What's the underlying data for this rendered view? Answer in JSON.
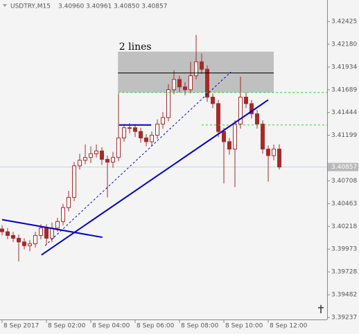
{
  "header": {
    "symbol": "USDTRY,M15",
    "quote": "3.40960 3.40961 3.40850 3.40857"
  },
  "chart_data": {
    "type": "candlestick",
    "candle_color": "#a52a2a",
    "bull_fill": "#ffffff",
    "xlim": [
      -0.375,
      58.625
    ],
    "ylim": [
      3.39215,
      3.42656
    ],
    "xticks": [
      {
        "value": 0,
        "label": "8 Sep 2017"
      },
      {
        "value": 8,
        "label": "8 Sep 02:00"
      },
      {
        "value": 16,
        "label": "8 Sep 04:00"
      },
      {
        "value": 24,
        "label": "8 Sep 06:00"
      },
      {
        "value": 32,
        "label": "8 Sep 08:00"
      },
      {
        "value": 40,
        "label": "8 Sep 10:00"
      },
      {
        "value": 48,
        "label": "8 Sep 12:00"
      }
    ],
    "yticks": [
      3.42425,
      {
        "value": 3.4218,
        "label": "3.42180"
      },
      3.41934,
      3.41689,
      3.41444,
      3.41199,
      3.40708,
      3.40463,
      3.40218,
      3.39973,
      3.39728,
      3.39482,
      3.39237
    ],
    "current_price": 3.40857,
    "candles": [
      [
        3.4019,
        3.4023,
        3.4012,
        3.4016
      ],
      [
        3.4016,
        3.402,
        3.4008,
        3.4012
      ],
      [
        3.4012,
        3.4016,
        3.4005,
        3.4009
      ],
      [
        3.4009,
        3.4013,
        3.3984,
        3.4005
      ],
      [
        3.4005,
        3.4009,
        3.3997,
        3.4001
      ],
      [
        3.4001,
        3.4007,
        3.3995,
        3.4003
      ],
      [
        3.4003,
        3.4016,
        3.3999,
        3.4012
      ],
      [
        3.4012,
        3.4024,
        3.4008,
        3.402
      ],
      [
        3.402,
        3.4024,
        3.4002,
        3.4009
      ],
      [
        3.4009,
        3.4026,
        3.4005,
        3.402
      ],
      [
        3.402,
        3.4031,
        3.4016,
        3.4027
      ],
      [
        3.4027,
        3.4046,
        3.4023,
        3.4042
      ],
      [
        3.4042,
        3.406,
        3.4038,
        3.4053
      ],
      [
        3.4053,
        3.4091,
        3.4049,
        3.4087
      ],
      [
        3.4087,
        3.41,
        3.4083,
        3.4093
      ],
      [
        3.4093,
        3.411,
        3.4089,
        3.4096
      ],
      [
        3.4096,
        3.4108,
        3.409,
        3.41
      ],
      [
        3.41,
        3.411,
        3.4096,
        3.4103
      ],
      [
        3.4103,
        3.4107,
        3.4088,
        3.4094
      ],
      [
        3.4094,
        3.4098,
        3.4053,
        3.4091
      ],
      [
        3.4091,
        3.4102,
        3.4085,
        3.4096
      ],
      [
        3.4096,
        3.4165,
        3.4092,
        3.4117
      ],
      [
        3.4117,
        3.4132,
        3.4113,
        3.4128
      ],
      [
        3.4128,
        3.4133,
        3.4122,
        3.4128
      ],
      [
        3.4128,
        3.4132,
        3.4118,
        3.4124
      ],
      [
        3.4124,
        3.4128,
        3.4112,
        3.4117
      ],
      [
        3.4117,
        3.4121,
        3.4108,
        3.4113
      ],
      [
        3.4113,
        3.4124,
        3.4108,
        3.412
      ],
      [
        3.412,
        3.4137,
        3.4116,
        3.4132
      ],
      [
        3.4132,
        3.4145,
        3.4127,
        3.4139
      ],
      [
        3.4139,
        3.4175,
        3.4135,
        3.4169
      ],
      [
        3.4169,
        3.419,
        3.4164,
        3.418
      ],
      [
        3.418,
        3.4184,
        3.4166,
        3.4172
      ],
      [
        3.4172,
        3.4177,
        3.4163,
        3.4169
      ],
      [
        3.4169,
        3.4199,
        3.4165,
        3.4184
      ],
      [
        3.4184,
        3.4228,
        3.418,
        3.4199
      ],
      [
        3.4199,
        3.4208,
        3.4186,
        3.4191
      ],
      [
        3.4191,
        3.4195,
        3.4156,
        3.4161
      ],
      [
        3.4161,
        3.4165,
        3.4149,
        3.4154
      ],
      [
        3.4154,
        3.4158,
        3.4118,
        3.4124
      ],
      [
        3.4124,
        3.4128,
        3.4068,
        3.4113
      ],
      [
        3.4113,
        3.4117,
        3.4099,
        3.4105
      ],
      [
        3.4105,
        3.4136,
        3.4064,
        3.4132
      ],
      [
        3.4132,
        3.4183,
        3.4127,
        3.4161
      ],
      [
        3.4161,
        3.4166,
        3.4149,
        3.4154
      ],
      [
        3.4154,
        3.4158,
        3.4138,
        3.4143
      ],
      [
        3.4143,
        3.4147,
        3.4127,
        3.4132
      ],
      [
        3.4132,
        3.4136,
        3.41,
        3.4105
      ],
      [
        3.4105,
        3.4109,
        3.407,
        3.4098
      ],
      [
        3.4098,
        3.411,
        3.4093,
        3.4105
      ],
      [
        3.4105,
        3.411,
        3.4083,
        3.40857
      ]
    ],
    "objects": [
      {
        "type": "rect",
        "x": [
          20.9,
          49
        ],
        "y": [
          3.421,
          3.4166
        ],
        "color": "#c0c0c0"
      },
      {
        "type": "line",
        "x": [
          20.9,
          49
        ],
        "y": [
          3.4187,
          3.4187
        ],
        "color": "#000000",
        "width": 1
      },
      {
        "type": "line",
        "x": [
          20.9,
          58.625
        ],
        "y": [
          3.4166,
          3.4166
        ],
        "color": "#33cc33",
        "width": 1,
        "dash": true
      },
      {
        "type": "line",
        "x": [
          36,
          58.625
        ],
        "y": [
          3.4131,
          3.4131
        ],
        "color": "#33cc33",
        "width": 1,
        "dash": true
      },
      {
        "type": "line",
        "x": [
          0,
          18.1
        ],
        "y": [
          3.4029,
          3.401
        ],
        "color": "#0000cc",
        "width": 2
      },
      {
        "type": "line",
        "x": [
          7.1,
          48
        ],
        "y": [
          3.3991,
          3.4158
        ],
        "color": "#0000cc",
        "width": 2
      },
      {
        "type": "line",
        "x": [
          7.75,
          41.25
        ],
        "y": [
          3.4001,
          3.4188
        ],
        "color": "#0000cc",
        "width": 1,
        "dash": true
      },
      {
        "type": "line",
        "x": [
          21.1,
          26.9
        ],
        "y": [
          3.4131,
          3.4131
        ],
        "color": "#0000cc",
        "width": 2
      },
      {
        "type": "text",
        "x": 21.1,
        "y": 3.4215,
        "text": "2 lines"
      }
    ]
  }
}
